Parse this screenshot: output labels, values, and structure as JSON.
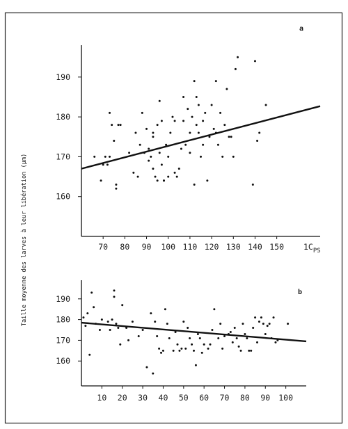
{
  "figure": {
    "ylabel": "Taille moyenne des larves à leur libération (µm)",
    "x_unit_prefix": "1C",
    "x_unit_subscript": "PS"
  },
  "chart_data": [
    {
      "type": "scatter",
      "panel_label": "a",
      "xlim": [
        60,
        170
      ],
      "ylim": [
        150,
        198
      ],
      "x_ticks": [
        70,
        80,
        90,
        100,
        110,
        120,
        130,
        140,
        150
      ],
      "x_tick_labels": [
        "70",
        "80",
        "90",
        "100",
        "110",
        "120",
        "130",
        "140",
        "150"
      ],
      "x_last_label": "1C",
      "x_last_label_sub": "PS",
      "y_ticks": [
        160,
        170,
        180,
        190
      ],
      "y_tick_labels": [
        "160",
        "170",
        "180",
        "190"
      ],
      "trend_line": {
        "x": [
          60,
          170
        ],
        "y": [
          167,
          182.7
        ]
      },
      "points": [
        [
          66,
          170
        ],
        [
          69,
          164
        ],
        [
          70,
          168
        ],
        [
          71,
          170
        ],
        [
          72,
          168
        ],
        [
          73,
          181
        ],
        [
          73,
          170
        ],
        [
          74,
          178
        ],
        [
          75,
          174
        ],
        [
          76,
          163
        ],
        [
          76,
          162
        ],
        [
          77,
          178
        ],
        [
          78,
          178
        ],
        [
          82,
          171
        ],
        [
          84,
          166
        ],
        [
          85,
          176
        ],
        [
          86,
          165
        ],
        [
          87,
          173
        ],
        [
          88,
          181
        ],
        [
          89,
          171
        ],
        [
          90,
          177
        ],
        [
          91,
          172
        ],
        [
          91,
          169
        ],
        [
          92,
          170
        ],
        [
          93,
          175
        ],
        [
          93,
          176
        ],
        [
          93,
          167
        ],
        [
          94,
          165
        ],
        [
          95,
          164
        ],
        [
          95,
          178
        ],
        [
          96,
          184
        ],
        [
          96,
          171
        ],
        [
          97,
          179
        ],
        [
          97,
          168
        ],
        [
          98,
          164
        ],
        [
          98,
          164
        ],
        [
          99,
          173
        ],
        [
          100,
          165
        ],
        [
          100,
          170
        ],
        [
          101,
          176
        ],
        [
          102,
          180
        ],
        [
          103,
          166
        ],
        [
          103,
          179
        ],
        [
          104,
          165
        ],
        [
          105,
          167
        ],
        [
          106,
          172
        ],
        [
          107,
          185
        ],
        [
          107,
          179
        ],
        [
          108,
          173
        ],
        [
          109,
          182
        ],
        [
          110,
          171
        ],
        [
          110,
          176
        ],
        [
          111,
          180
        ],
        [
          112,
          189
        ],
        [
          112,
          163
        ],
        [
          113,
          178
        ],
        [
          113,
          185
        ],
        [
          114,
          183
        ],
        [
          114,
          176
        ],
        [
          115,
          170
        ],
        [
          116,
          179
        ],
        [
          116,
          173
        ],
        [
          117,
          181
        ],
        [
          118,
          164
        ],
        [
          119,
          175
        ],
        [
          120,
          183
        ],
        [
          121,
          177
        ],
        [
          122,
          176
        ],
        [
          122,
          189
        ],
        [
          123,
          173
        ],
        [
          124,
          181
        ],
        [
          125,
          170
        ],
        [
          126,
          178
        ],
        [
          127,
          187
        ],
        [
          128,
          175
        ],
        [
          129,
          175
        ],
        [
          130,
          170
        ],
        [
          131,
          192
        ],
        [
          132,
          195
        ],
        [
          139,
          163
        ],
        [
          140,
          194
        ],
        [
          141,
          174
        ],
        [
          142,
          176
        ],
        [
          145,
          183
        ]
      ]
    },
    {
      "type": "scatter",
      "panel_label": "b",
      "xlim": [
        0,
        110
      ],
      "ylim": [
        148,
        199
      ],
      "x_ticks": [
        10,
        20,
        30,
        40,
        50,
        60,
        70,
        80,
        90,
        100
      ],
      "x_tick_labels": [
        "10",
        "20",
        "30",
        "40",
        "50",
        "60",
        "70",
        "80",
        "90",
        "100"
      ],
      "y_ticks": [
        160,
        170,
        180,
        190
      ],
      "y_tick_labels": [
        "160",
        "170",
        "180",
        "190"
      ],
      "trend_line": {
        "x": [
          0,
          110
        ],
        "y": [
          178.5,
          169.5
        ]
      },
      "points": [
        [
          1,
          181
        ],
        [
          2,
          177
        ],
        [
          3,
          183
        ],
        [
          4,
          163
        ],
        [
          5,
          193
        ],
        [
          6,
          186
        ],
        [
          7,
          178
        ],
        [
          9,
          175
        ],
        [
          10,
          180
        ],
        [
          13,
          179
        ],
        [
          14,
          175
        ],
        [
          15,
          180
        ],
        [
          16,
          194
        ],
        [
          16,
          191
        ],
        [
          17,
          178
        ],
        [
          18,
          176
        ],
        [
          19,
          168
        ],
        [
          20,
          187
        ],
        [
          22,
          176
        ],
        [
          23,
          170
        ],
        [
          25,
          179
        ],
        [
          28,
          172
        ],
        [
          30,
          175
        ],
        [
          32,
          157
        ],
        [
          34,
          183
        ],
        [
          35,
          154
        ],
        [
          36,
          179
        ],
        [
          37,
          172
        ],
        [
          38,
          166
        ],
        [
          39,
          164
        ],
        [
          40,
          165
        ],
        [
          41,
          185
        ],
        [
          42,
          178
        ],
        [
          43,
          171
        ],
        [
          45,
          165
        ],
        [
          46,
          174
        ],
        [
          47,
          168
        ],
        [
          48,
          165
        ],
        [
          49,
          166
        ],
        [
          50,
          179
        ],
        [
          51,
          166
        ],
        [
          52,
          176
        ],
        [
          53,
          171
        ],
        [
          54,
          168
        ],
        [
          55,
          165
        ],
        [
          56,
          158
        ],
        [
          57,
          173
        ],
        [
          58,
          171
        ],
        [
          59,
          164
        ],
        [
          60,
          168
        ],
        [
          62,
          166
        ],
        [
          63,
          168
        ],
        [
          64,
          175
        ],
        [
          65,
          185
        ],
        [
          67,
          171
        ],
        [
          68,
          178
        ],
        [
          69,
          166
        ],
        [
          70,
          172
        ],
        [
          72,
          173
        ],
        [
          73,
          174
        ],
        [
          74,
          169
        ],
        [
          75,
          176
        ],
        [
          76,
          171
        ],
        [
          77,
          167
        ],
        [
          78,
          165
        ],
        [
          79,
          178
        ],
        [
          80,
          173
        ],
        [
          81,
          171
        ],
        [
          82,
          165
        ],
        [
          83,
          165
        ],
        [
          84,
          176
        ],
        [
          85,
          181
        ],
        [
          86,
          169
        ],
        [
          87,
          179
        ],
        [
          88,
          181
        ],
        [
          89,
          178
        ],
        [
          90,
          173
        ],
        [
          91,
          177
        ],
        [
          92,
          178
        ],
        [
          93,
          171
        ],
        [
          94,
          181
        ],
        [
          95,
          169
        ],
        [
          96,
          170
        ],
        [
          101,
          178
        ]
      ]
    }
  ]
}
